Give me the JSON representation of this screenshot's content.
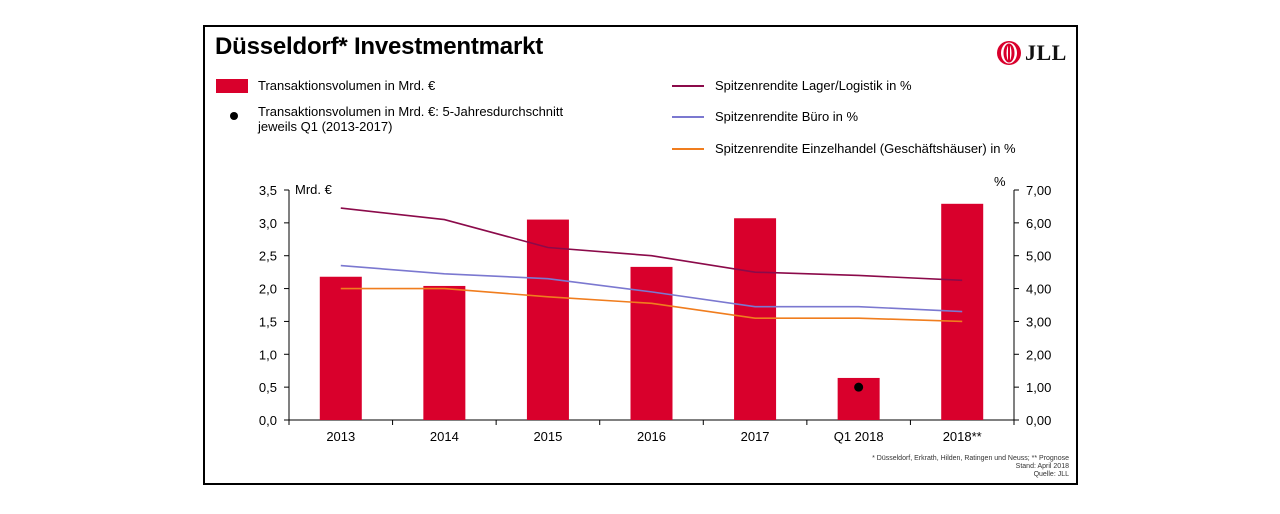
{
  "title": "Düsseldorf* Investmentmarkt",
  "logo_text": "JLL",
  "colors": {
    "bar": "#d9002c",
    "logistik": "#8b0a4a",
    "buero": "#7b78d0",
    "einzelhandel": "#f07d1e",
    "dot": "#000000"
  },
  "legend": {
    "bar": "Transaktionsvolumen in Mrd. €",
    "dot_line1": "Transaktionsvolumen in Mrd. €: 5-Jahresdurchschnitt",
    "dot_line2": "jeweils Q1 (2013-2017)",
    "logistik": "Spitzenrendite Lager/Logistik in %",
    "buero": "Spitzenrendite Büro in %",
    "einzelhandel": "Spitzenrendite Einzelhandel (Geschäftshäuser) in %"
  },
  "footnote": {
    "line1": "* Düsseldorf, Erkrath, Hilden, Ratingen und Neuss; ** Prognose",
    "line2": "Stand: April 2018",
    "line3": "Quelle: JLL"
  },
  "chart_data": {
    "type": "bar",
    "categories": [
      "2013",
      "2014",
      "2015",
      "2016",
      "2017",
      "Q1 2018",
      "2018**"
    ],
    "y_left": {
      "label": "Mrd. €",
      "range": [
        0,
        3.5
      ],
      "ticks": [
        "0,0",
        "0,5",
        "1,0",
        "1,5",
        "2,0",
        "2,5",
        "3,0",
        "3,5"
      ]
    },
    "y_right": {
      "label": "%",
      "range": [
        0,
        7
      ],
      "ticks": [
        "0,00",
        "1,00",
        "2,00",
        "3,00",
        "4,00",
        "5,00",
        "6,00",
        "7,00"
      ]
    },
    "bars": [
      2.18,
      2.04,
      3.05,
      2.33,
      3.07,
      0.64,
      3.29
    ],
    "dot": {
      "category": "Q1 2018",
      "value": 0.5
    },
    "lines": [
      {
        "key": "logistik",
        "axis": "right",
        "values": [
          6.45,
          6.1,
          5.25,
          5.0,
          4.5,
          4.4,
          4.25
        ]
      },
      {
        "key": "buero",
        "axis": "right",
        "values": [
          4.7,
          4.45,
          4.3,
          3.9,
          3.45,
          3.45,
          3.3
        ]
      },
      {
        "key": "einzelhandel",
        "axis": "right",
        "values": [
          4.0,
          4.0,
          3.75,
          3.55,
          3.1,
          3.1,
          3.0
        ]
      }
    ]
  }
}
